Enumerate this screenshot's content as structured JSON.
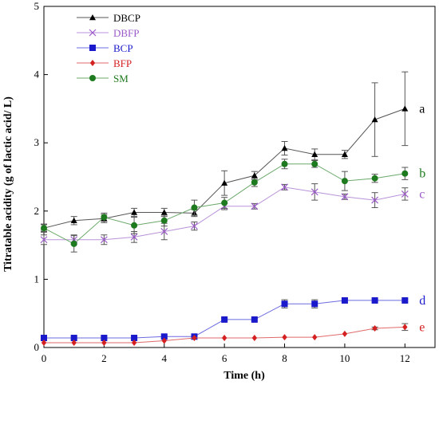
{
  "chart_data": {
    "type": "line",
    "title": "",
    "xlabel": "Time (h)",
    "ylabel": "Titratable acidity (g of lactic acid/ L)",
    "xlim": [
      0,
      13
    ],
    "ylim": [
      0,
      5
    ],
    "x_ticks": [
      0,
      2,
      4,
      6,
      8,
      10,
      12
    ],
    "y_ticks": [
      0,
      1,
      2,
      3,
      4,
      5
    ],
    "legend_position": "top-left",
    "grid": false,
    "x": [
      0,
      1,
      2,
      3,
      4,
      5,
      6,
      7,
      8,
      9,
      10,
      11,
      12
    ],
    "series": [
      {
        "name": "DBCP",
        "marker": "triangle",
        "color": "#000000",
        "line_color": "#555555",
        "values": [
          1.75,
          1.86,
          1.89,
          1.98,
          1.98,
          1.97,
          2.41,
          2.52,
          2.92,
          2.83,
          2.83,
          3.34,
          3.5
        ],
        "errors": [
          0.05,
          0.06,
          0.06,
          0.06,
          0.06,
          0.05,
          0.18,
          0.06,
          0.1,
          0.08,
          0.06,
          0.54,
          0.54
        ],
        "letter": "a"
      },
      {
        "name": "DBFP",
        "marker": "x",
        "color": "#9b59c9",
        "line_color": "#b892d8",
        "values": [
          1.58,
          1.58,
          1.58,
          1.62,
          1.7,
          1.78,
          2.07,
          2.07,
          2.35,
          2.28,
          2.21,
          2.16,
          2.25
        ],
        "errors": [
          0.07,
          0.07,
          0.07,
          0.08,
          0.12,
          0.06,
          0.05,
          0.04,
          0.04,
          0.12,
          0.04,
          0.11,
          0.09
        ],
        "letter": "c"
      },
      {
        "name": "BCP",
        "marker": "square",
        "color": "#1a1acc",
        "line_color": "#6b6be0",
        "values": [
          0.14,
          0.14,
          0.14,
          0.14,
          0.16,
          0.16,
          0.41,
          0.41,
          0.64,
          0.64,
          0.69,
          0.69,
          0.69
        ],
        "errors": [
          0.02,
          0.02,
          0.02,
          0.02,
          0.02,
          0.02,
          0.02,
          0.02,
          0.06,
          0.06,
          0.02,
          0.02,
          0.02
        ],
        "letter": "d"
      },
      {
        "name": "BFP",
        "marker": "diamond",
        "color": "#d42020",
        "line_color": "#e06a6a",
        "values": [
          0.07,
          0.07,
          0.07,
          0.07,
          0.1,
          0.14,
          0.14,
          0.14,
          0.15,
          0.15,
          0.2,
          0.28,
          0.3
        ],
        "errors": [
          0.01,
          0.01,
          0.01,
          0.01,
          0.01,
          0.01,
          0.01,
          0.01,
          0.01,
          0.01,
          0.01,
          0.02,
          0.05
        ],
        "letter": "e"
      },
      {
        "name": "SM",
        "marker": "circle",
        "color": "#1e7a1e",
        "line_color": "#6aa86a",
        "values": [
          1.75,
          1.52,
          1.91,
          1.79,
          1.86,
          2.05,
          2.12,
          2.42,
          2.69,
          2.69,
          2.44,
          2.48,
          2.55
        ],
        "errors": [
          0.06,
          0.12,
          0.06,
          0.12,
          0.08,
          0.11,
          0.08,
          0.06,
          0.07,
          0.05,
          0.14,
          0.06,
          0.09
        ],
        "letter": "b"
      }
    ]
  }
}
